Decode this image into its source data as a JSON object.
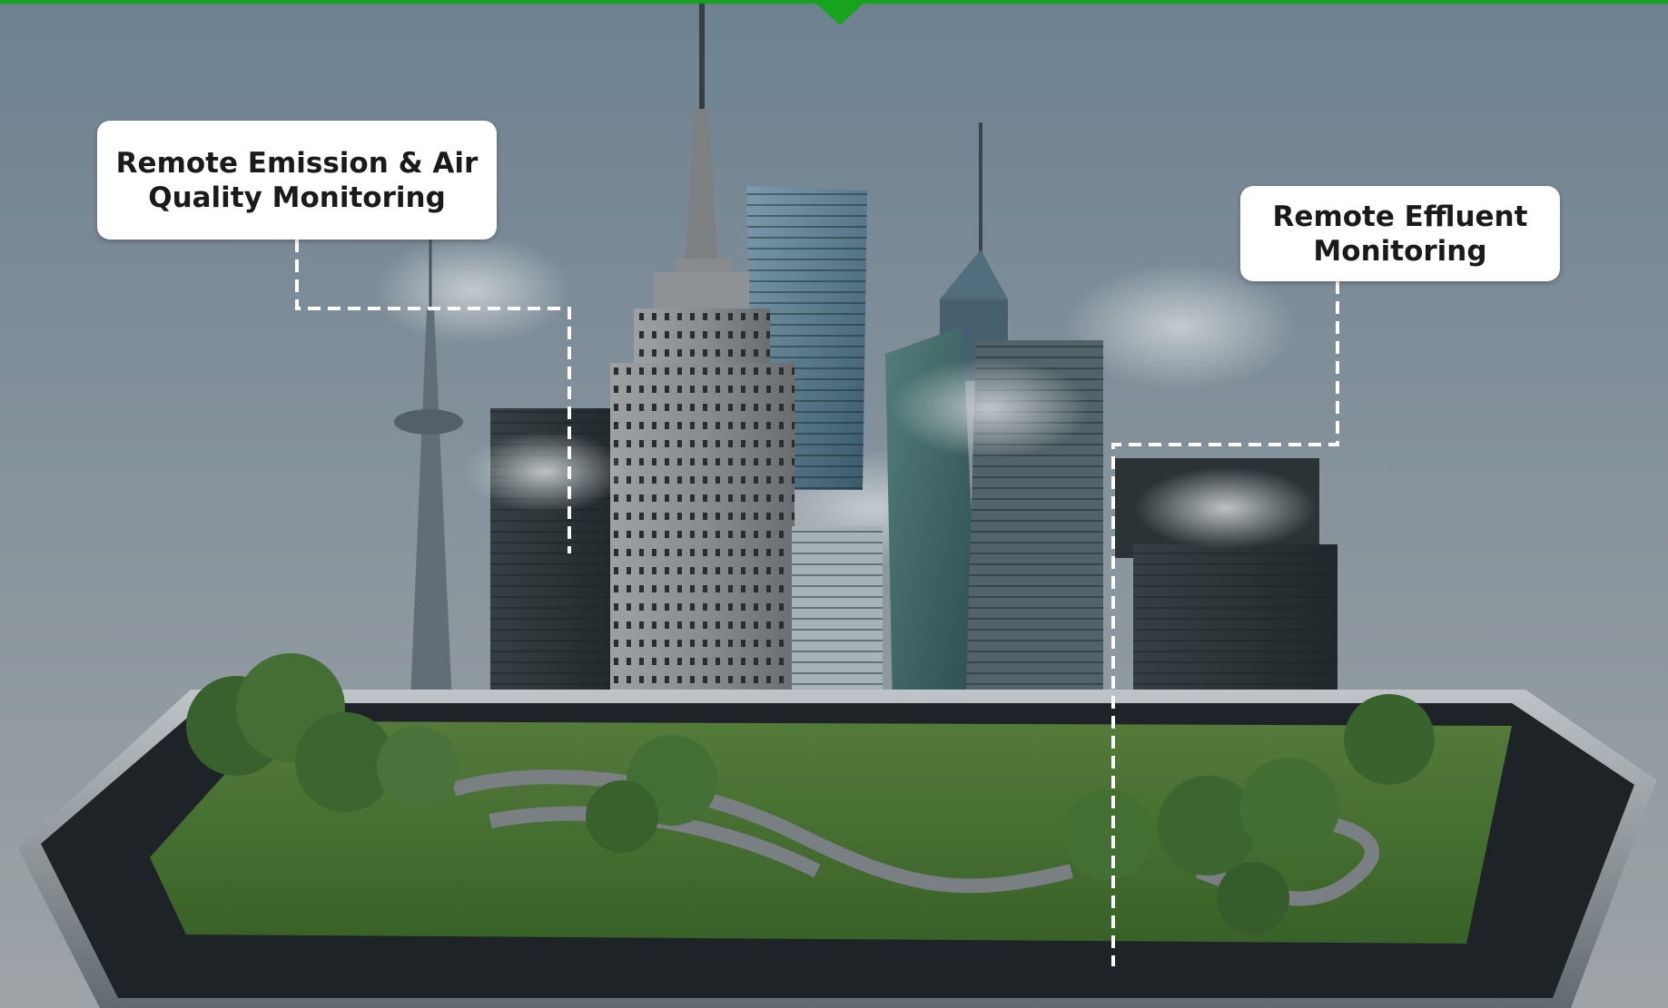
{
  "colors": {
    "accent_bar": "#17a31d",
    "callout_bg": "#ffffff",
    "callout_text": "#1a1a1a",
    "connector": "#ffffff"
  },
  "callouts": {
    "air_quality": {
      "line1": "Remote Emission & Air",
      "line2": "Quality Monitoring"
    },
    "effluent": {
      "line1": "Remote Effluent",
      "line2": "Monitoring"
    }
  },
  "icons": {
    "top_marker": "down-pointer-triangle"
  }
}
